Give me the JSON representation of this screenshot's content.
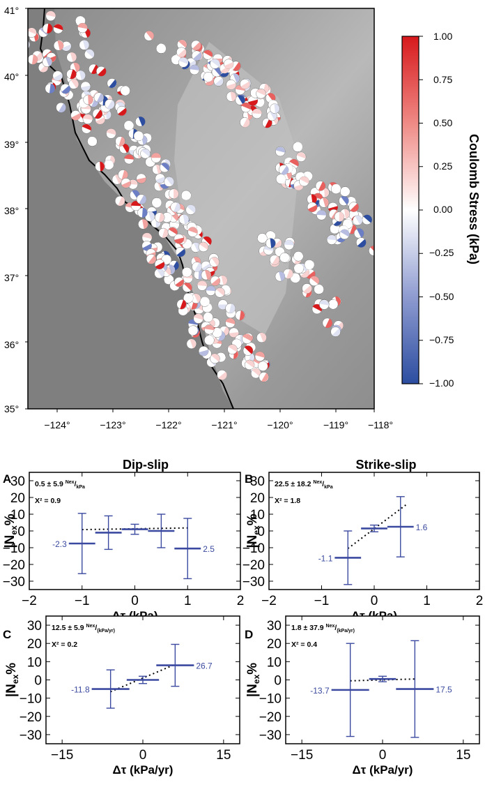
{
  "map": {
    "lat_ticks": [
      "41°",
      "40°",
      "39°",
      "38°",
      "37°",
      "36°",
      "35°"
    ],
    "lon_ticks": [
      "−124°",
      "−123°",
      "−122°",
      "−121°",
      "−120°",
      "−119°",
      "−118°"
    ],
    "colorbar": {
      "label": "Coulomb Stress (kPa)",
      "ticks": [
        "1.00",
        "0.75",
        "0.50",
        "0.25",
        "0.00",
        "−0.25",
        "−0.50",
        "−0.75",
        "−1.00"
      ],
      "colors": {
        "max": "#d7191c",
        "mid": "#ffffff",
        "min": "#2c4da0"
      }
    }
  },
  "section_titles": {
    "dip": "Dip-slip",
    "strike": "Strike-slip"
  },
  "colors": {
    "series": "#3b4aa0",
    "frame": "#000000",
    "fit": "#000000"
  },
  "chart_data": [
    {
      "panel": "A",
      "type": "scatter",
      "title": "Dip-slip",
      "stat": "0.5 ± 5.9",
      "stat_sup": "Nex",
      "stat_sub": "kPa",
      "chi": "X² = 0.9",
      "xlabel": "Δτ (kPa)",
      "xlim": [
        -2,
        2
      ],
      "ylim": [
        -35,
        35
      ],
      "xticks": [
        -2,
        -1,
        0,
        1,
        2
      ],
      "xtick_labels": [
        "−2",
        "−1",
        "0",
        "1",
        "2"
      ],
      "yticks": [
        30,
        20,
        10,
        0,
        -10,
        -20,
        -30
      ],
      "ytick_labels": [
        "30",
        "20",
        "10",
        "0",
        "−10",
        "−20",
        "−30"
      ],
      "points": [
        {
          "x": -1.0,
          "y": -7.5,
          "xerr": 0.25,
          "yerr": 18
        },
        {
          "x": -0.5,
          "y": -1.0,
          "xerr": 0.25,
          "yerr": 10
        },
        {
          "x": 0.0,
          "y": 1.0,
          "xerr": 0.25,
          "yerr": 3
        },
        {
          "x": 0.5,
          "y": 0.0,
          "xerr": 0.25,
          "yerr": 10
        },
        {
          "x": 1.0,
          "y": -10.5,
          "xerr": 0.25,
          "yerr": 18
        }
      ],
      "end_labels": [
        "-2.3",
        "2.5"
      ],
      "fit": {
        "x": [
          -1.0,
          1.0
        ],
        "y": [
          0.8,
          1.8
        ]
      }
    },
    {
      "panel": "B",
      "type": "scatter",
      "title": "Strike-slip",
      "stat": "22.5 ± 18.2",
      "stat_sup": "Nex",
      "stat_sub": "kPa",
      "chi": "X² = 1.8",
      "xlabel": "Δτ (kPa)",
      "xlim": [
        -2,
        2
      ],
      "ylim": [
        -35,
        35
      ],
      "xticks": [
        -2,
        -1,
        0,
        1,
        2
      ],
      "xtick_labels": [
        "−2",
        "−1",
        "0",
        "1",
        "2"
      ],
      "yticks": [
        30,
        20,
        10,
        0,
        -10,
        -20,
        -30
      ],
      "ytick_labels": [
        "30",
        "20",
        "10",
        "0",
        "−10",
        "−20",
        "−30"
      ],
      "points": [
        {
          "x": -0.5,
          "y": -16,
          "xerr": 0.25,
          "yerr": 16
        },
        {
          "x": 0.0,
          "y": 1.5,
          "xerr": 0.25,
          "yerr": 2
        },
        {
          "x": 0.5,
          "y": 2.5,
          "xerr": 0.25,
          "yerr": 18
        }
      ],
      "end_labels": [
        "-1.1",
        "1.6"
      ],
      "fit": {
        "x": [
          -0.5,
          0.6
        ],
        "y": [
          -10.5,
          15.5
        ]
      }
    },
    {
      "panel": "C",
      "type": "scatter",
      "stat": "12.5 ± 5.9",
      "stat_sup": "Nex",
      "stat_sub": "(kPa/yr)",
      "chi": "X² = 0.2",
      "xlabel": "Δτ (kPa/yr)",
      "xlim": [
        -18,
        18
      ],
      "ylim": [
        -35,
        35
      ],
      "xticks": [
        -15,
        0,
        15
      ],
      "xtick_labels": [
        "−15",
        "0",
        "15"
      ],
      "yticks": [
        30,
        20,
        10,
        0,
        -10,
        -20,
        -30
      ],
      "ytick_labels": [
        "30",
        "20",
        "10",
        "0",
        "−10",
        "−20",
        "−30"
      ],
      "points": [
        {
          "x": -6,
          "y": -5,
          "xerr": 3.5,
          "yerr": 10.5
        },
        {
          "x": 0,
          "y": 0,
          "xerr": 3,
          "yerr": 2
        },
        {
          "x": 6,
          "y": 8,
          "xerr": 3.5,
          "yerr": 11.5
        }
      ],
      "end_labels": [
        "-11.8",
        "26.7"
      ],
      "fit": {
        "x": [
          -6,
          6
        ],
        "y": [
          -6.5,
          8.5
        ]
      }
    },
    {
      "panel": "D",
      "type": "scatter",
      "stat": "1.8 ± 37.9",
      "stat_sup": "Nex",
      "stat_sub": "(kPa/yr)",
      "chi": "X² = 0.4",
      "xlabel": "Δτ (kPa/yr)",
      "xlim": [
        -18,
        18
      ],
      "ylim": [
        -35,
        35
      ],
      "xticks": [
        -15,
        0,
        15
      ],
      "xtick_labels": [
        "−15",
        "0",
        "15"
      ],
      "yticks": [
        30,
        20,
        10,
        0,
        -10,
        -20,
        -30
      ],
      "ytick_labels": [
        "30",
        "20",
        "10",
        "0",
        "−10",
        "−20",
        "−30"
      ],
      "points": [
        {
          "x": -6,
          "y": -5.5,
          "xerr": 3.5,
          "yerr": 25.5
        },
        {
          "x": 0,
          "y": 0.5,
          "xerr": 2.5,
          "yerr": 1.5
        },
        {
          "x": 6,
          "y": -5,
          "xerr": 3.5,
          "yerr": 26.5
        }
      ],
      "end_labels": [
        "-13.7",
        "17.5"
      ],
      "fit": {
        "x": [
          -6,
          6
        ],
        "y": [
          -0.5,
          0.5
        ]
      }
    }
  ]
}
